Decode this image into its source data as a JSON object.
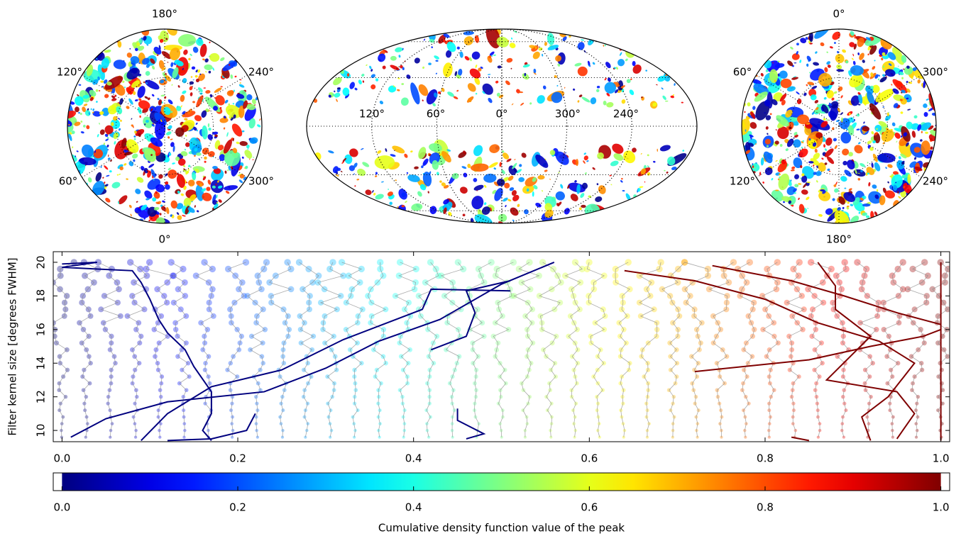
{
  "chart_data": [
    {
      "type": "skymap",
      "projection": "orthographic",
      "labels": [
        "180°",
        "120°",
        "240°",
        "60°",
        "300°",
        "0°"
      ]
    },
    {
      "type": "skymap",
      "projection": "mollweide",
      "labels": [
        "120°",
        "60°",
        "0°",
        "300°",
        "240°"
      ]
    },
    {
      "type": "skymap",
      "projection": "orthographic",
      "labels": [
        "0°",
        "60°",
        "300°",
        "120°",
        "240°",
        "180°"
      ]
    },
    {
      "type": "tracks",
      "y_label": "Filter kernel size [degrees FWHM]",
      "xlim": [
        -0.01,
        1.01
      ],
      "ylim": [
        9.33,
        20.63
      ],
      "xticks": [
        {
          "value": 0,
          "label": "0.0"
        },
        {
          "value": 0.2,
          "label": "0.2"
        },
        {
          "value": 0.4,
          "label": "0.4"
        },
        {
          "value": 0.6,
          "label": "0.6"
        },
        {
          "value": 0.8,
          "label": "0.8"
        },
        {
          "value": 1,
          "label": "1.0"
        }
      ],
      "yticks": [
        10,
        12,
        14,
        16,
        18,
        20
      ],
      "series": [
        {
          "color": "#00007f",
          "x": [
            0.0,
            0.04,
            0.0,
            0.08,
            0.09,
            0.1,
            0.11,
            0.12,
            0.14,
            0.15,
            0.17,
            0.17,
            0.16,
            0.17
          ],
          "y": [
            19.9,
            20.0,
            19.7,
            19.5,
            18.8,
            17.8,
            16.6,
            15.8,
            14.8,
            13.8,
            12.3,
            11.0,
            10.0,
            9.4
          ]
        },
        {
          "color": "#00007f",
          "x": [
            0.56,
            0.5,
            0.43,
            0.36,
            0.3,
            0.23,
            0.12,
            0.05,
            0.01
          ],
          "y": [
            20.0,
            18.7,
            16.6,
            15.3,
            13.7,
            12.3,
            11.7,
            10.7,
            9.6
          ]
        },
        {
          "color": "#00007f",
          "x": [
            0.51,
            0.46,
            0.47,
            0.46,
            0.42
          ],
          "y": [
            18.9,
            18.3,
            17.0,
            15.6,
            14.8
          ]
        },
        {
          "color": "#00007f",
          "x": [
            0.51,
            0.42,
            0.41,
            0.37,
            0.32,
            0.25,
            0.17,
            0.12,
            0.09
          ],
          "y": [
            18.3,
            18.4,
            17.2,
            16.4,
            15.4,
            13.6,
            12.6,
            11.0,
            9.4
          ]
        },
        {
          "color": "#00007f",
          "x": [
            0.22,
            0.21,
            0.17,
            0.12
          ],
          "y": [
            11.0,
            10.0,
            9.5,
            9.4
          ]
        },
        {
          "color": "#00007f",
          "x": [
            0.45,
            0.45,
            0.48,
            0.46
          ],
          "y": [
            11.3,
            10.6,
            9.8,
            9.5
          ]
        },
        {
          "color": "#7f0000",
          "x": [
            0.64,
            0.72,
            0.8,
            0.86,
            0.93,
            0.97,
            0.94,
            0.91,
            0.92
          ],
          "y": [
            19.5,
            18.9,
            17.8,
            16.4,
            15.3,
            14.0,
            12.0,
            10.8,
            9.4
          ]
        },
        {
          "color": "#7f0000",
          "x": [
            0.74,
            0.83,
            0.89,
            0.95,
            1.0
          ],
          "y": [
            19.8,
            18.9,
            18.0,
            17.0,
            16.3
          ]
        },
        {
          "color": "#7f0000",
          "x": [
            0.72,
            0.85,
            0.92,
            0.98,
            1.0
          ],
          "y": [
            13.5,
            14.2,
            15.0,
            15.6,
            16.0
          ]
        },
        {
          "color": "#7f0000",
          "x": [
            0.86,
            0.88,
            0.88,
            0.92,
            0.87,
            0.95,
            0.97,
            0.95
          ],
          "y": [
            20.0,
            18.6,
            17.2,
            15.6,
            13.0,
            12.3,
            11.0,
            9.5
          ]
        },
        {
          "color": "#7f0000",
          "x": [
            1.0,
            1.0
          ],
          "y": [
            20.0,
            9.4
          ]
        },
        {
          "color": "#7f0000",
          "x": [
            0.83,
            0.85
          ],
          "y": [
            9.6,
            9.4
          ]
        }
      ]
    },
    {
      "type": "colorbar",
      "colormap": "jet",
      "x_label": "Cumulative density function value of the peak",
      "xlim": [
        -0.01,
        1.01
      ],
      "xticks": [
        {
          "value": 0,
          "label": "0.0"
        },
        {
          "value": 0.2,
          "label": "0.2"
        },
        {
          "value": 0.4,
          "label": "0.4"
        },
        {
          "value": 0.6,
          "label": "0.6"
        },
        {
          "value": 0.8,
          "label": "0.8"
        },
        {
          "value": 1,
          "label": "1.0"
        }
      ]
    }
  ]
}
